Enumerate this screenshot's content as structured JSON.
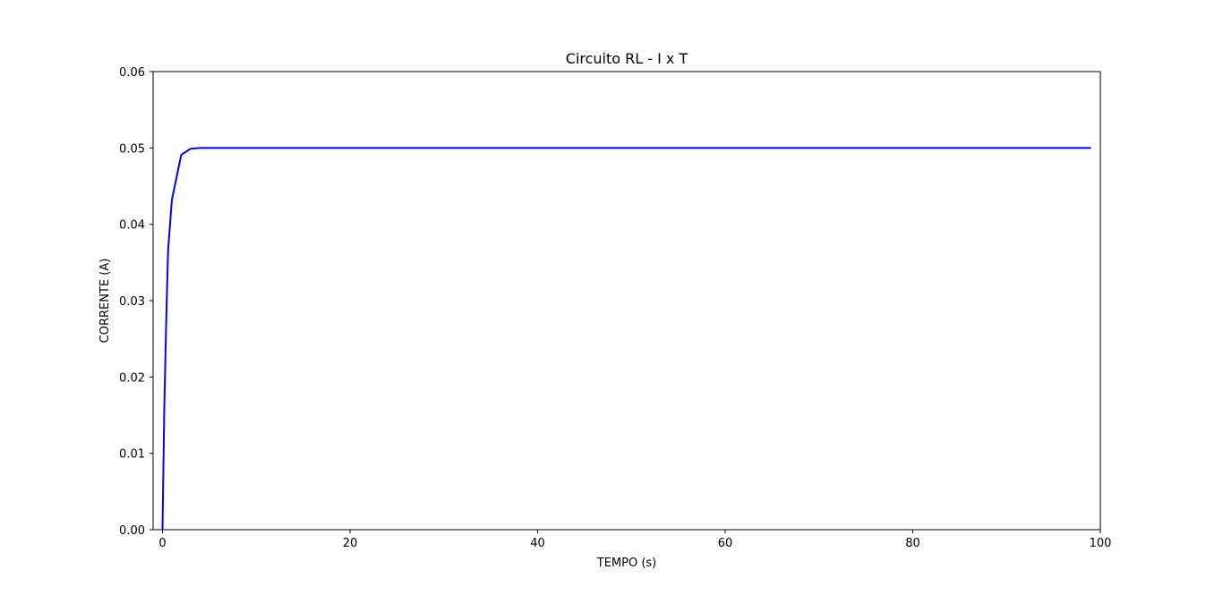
{
  "chart_data": {
    "type": "line",
    "title": "Circuito RL - I x T",
    "xlabel": "TEMPO (s)",
    "ylabel": "CORRENTE (A)",
    "xlim": [
      -1,
      100
    ],
    "ylim": [
      0,
      0.06
    ],
    "grid": false,
    "xticks": [
      0,
      20,
      40,
      60,
      80,
      100
    ],
    "xtick_labels": [
      "0",
      "20",
      "40",
      "60",
      "80",
      "100"
    ],
    "yticks": [
      0,
      0.01,
      0.02,
      0.03,
      0.04,
      0.05,
      0.06
    ],
    "ytick_labels": [
      "0.00",
      "0.01",
      "0.02",
      "0.03",
      "0.04",
      "0.05",
      "0.06"
    ],
    "series": [
      {
        "color": "#0000ff",
        "x": [
          0,
          0.2,
          0.4,
          0.6,
          0.8,
          1,
          2,
          3,
          4,
          5,
          6,
          7,
          8,
          9,
          10,
          20,
          30,
          40,
          50,
          60,
          70,
          80,
          90,
          99
        ],
        "y": [
          0,
          0.0165,
          0.0275,
          0.0367,
          0.0399,
          0.0432,
          0.0491,
          0.0499,
          0.05,
          0.05,
          0.05,
          0.05,
          0.05,
          0.05,
          0.05,
          0.05,
          0.05,
          0.05,
          0.05,
          0.05,
          0.05,
          0.05,
          0.05,
          0.05
        ]
      }
    ]
  }
}
